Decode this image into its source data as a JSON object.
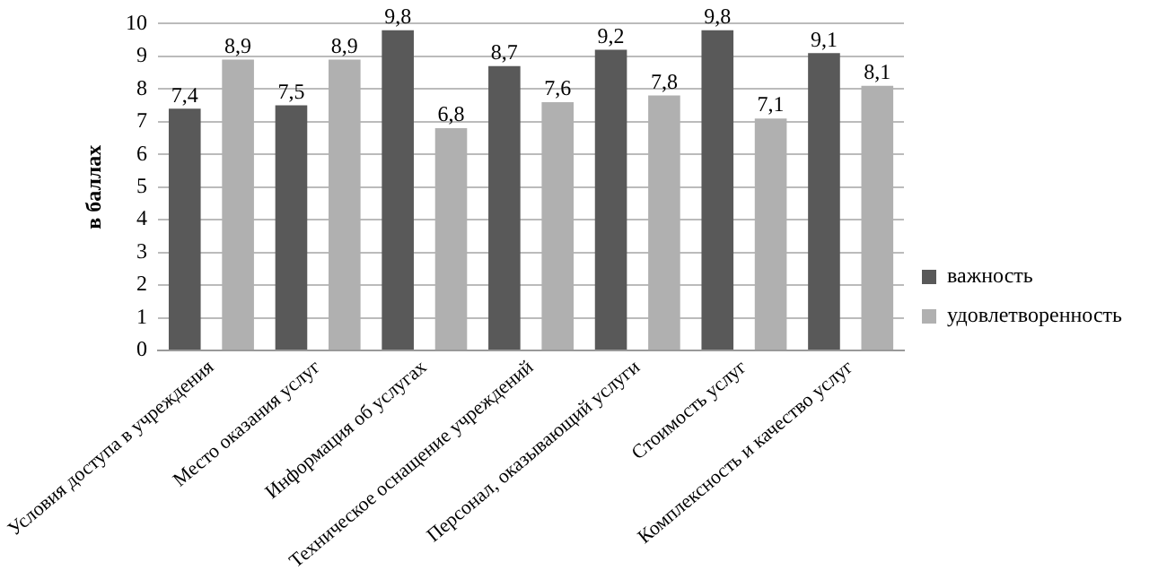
{
  "chart_data": {
    "type": "bar",
    "ylabel": "в баллах",
    "categories": [
      "Условия доступа в учреждения",
      "Место оказания услуг",
      "Информация об услугах",
      "Техническое оснащение учреждений",
      "Персонал, оказывающий услуги",
      "Стоимость услуг",
      "Комплексность и качество услуг"
    ],
    "series": [
      {
        "name": "важность",
        "color": "#595959",
        "values": [
          7.4,
          7.5,
          9.8,
          8.7,
          9.2,
          9.8,
          9.1
        ],
        "value_labels": [
          "7,4",
          "7,5",
          "9,8",
          "8,7",
          "9,2",
          "9,8",
          "9,1"
        ]
      },
      {
        "name": "удовлетворенность",
        "color": "#b0b0b0",
        "values": [
          8.9,
          8.9,
          6.8,
          7.6,
          7.8,
          7.1,
          8.1
        ],
        "value_labels": [
          "8,9",
          "8,9",
          "6,8",
          "7,6",
          "7,8",
          "7,1",
          "8,1"
        ]
      }
    ],
    "ylim": [
      0,
      10
    ],
    "yticks": [
      0,
      1,
      2,
      3,
      4,
      5,
      6,
      7,
      8,
      9,
      10
    ],
    "grid": "y",
    "legend": "right"
  }
}
